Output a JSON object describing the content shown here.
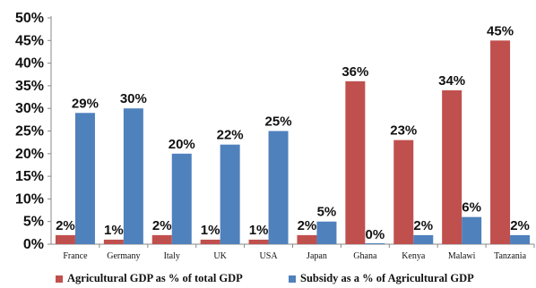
{
  "chart_data": {
    "type": "bar",
    "categories": [
      "France",
      "Germany",
      "Italy",
      "UK",
      "USA",
      "Japan",
      "Ghana",
      "Kenya",
      "Malawi",
      "Tanzania"
    ],
    "series": [
      {
        "name": "Agricultural GDP as % of total GDP",
        "color": "#c0504d",
        "values": [
          2,
          1,
          2,
          1,
          1,
          2,
          36,
          23,
          34,
          45
        ],
        "labels": [
          "2%",
          "1%",
          "2%",
          "1%",
          "1%",
          "2%",
          "36%",
          "23%",
          "34%",
          "45%"
        ]
      },
      {
        "name": "Subsidy as a % of Agricultural GDP",
        "color": "#4f81bd",
        "values": [
          29,
          30,
          20,
          22,
          25,
          5,
          0,
          2,
          6,
          2
        ],
        "labels": [
          "29%",
          "30%",
          "20%",
          "22%",
          "25%",
          "5%",
          "0%",
          "2%",
          "6%",
          "2%"
        ]
      }
    ],
    "yticks": [
      "0%",
      "5%",
      "10%",
      "15%",
      "20%",
      "25%",
      "30%",
      "35%",
      "40%",
      "45%",
      "50%"
    ],
    "ylim": [
      0,
      50
    ],
    "grid": false,
    "legend_position": "bottom"
  }
}
